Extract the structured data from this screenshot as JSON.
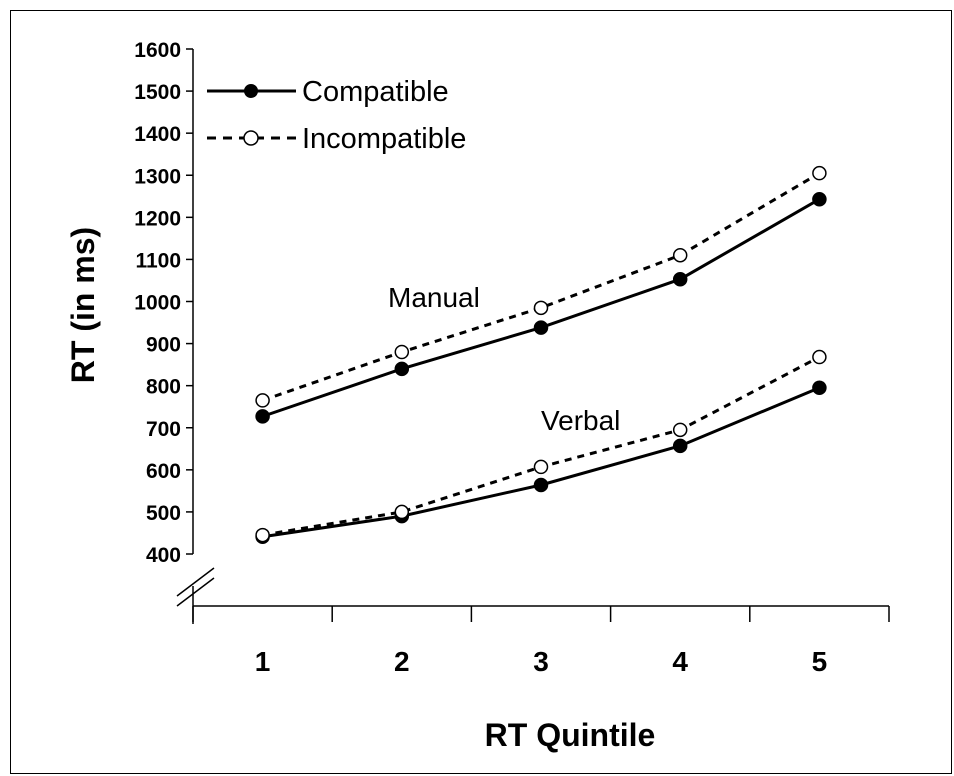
{
  "chart_data": {
    "type": "line",
    "x": [
      1,
      2,
      3,
      4,
      5
    ],
    "xlabel": "RT Quintile",
    "ylabel": "RT (in ms)",
    "yticks": [
      400,
      500,
      600,
      700,
      800,
      900,
      1000,
      1100,
      1200,
      1300,
      1400,
      1500,
      1600
    ],
    "ylim": [
      400,
      1600
    ],
    "axis_break": true,
    "legend_position": "top-left",
    "series": [
      {
        "name": "Compatible",
        "group": "Manual",
        "style": "solid",
        "marker": "filled",
        "values": [
          727,
          840,
          938,
          1053,
          1243
        ]
      },
      {
        "name": "Incompatible",
        "group": "Manual",
        "style": "dashed",
        "marker": "open",
        "values": [
          765,
          880,
          985,
          1110,
          1305
        ]
      },
      {
        "name": "Compatible",
        "group": "Verbal",
        "style": "solid",
        "marker": "filled",
        "values": [
          441,
          490,
          564,
          657,
          795
        ]
      },
      {
        "name": "Incompatible",
        "group": "Verbal",
        "style": "dashed",
        "marker": "open",
        "values": [
          445,
          500,
          607,
          695,
          868
        ]
      }
    ],
    "legend": [
      {
        "label": "Compatible",
        "style": "solid",
        "marker": "filled"
      },
      {
        "label": "Incompatible",
        "style": "dashed",
        "marker": "open"
      }
    ],
    "annotations": [
      {
        "text": "Manual",
        "anchor_series": 0
      },
      {
        "text": "Verbal",
        "anchor_series": 2
      }
    ],
    "colors": {
      "line": "#000000",
      "open_marker_fill": "#ffffff"
    }
  }
}
